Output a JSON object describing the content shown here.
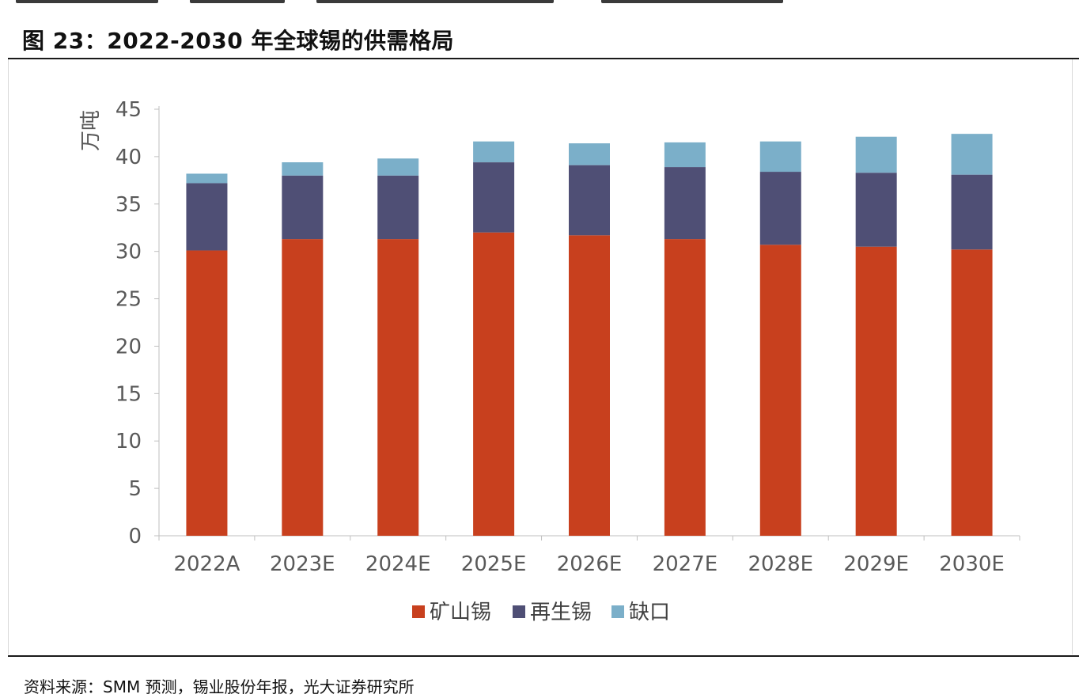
{
  "figure": {
    "title": "图 23：2022-2030 年全球锡的供需格局",
    "source": "资料来源：SMM 预测，锡业股份年报，光大证券研究所"
  },
  "chart_data": {
    "type": "bar",
    "stacked": true,
    "title": "",
    "xlabel": "",
    "ylabel": "万吨",
    "ylim": [
      0,
      45
    ],
    "yticks": [
      0,
      5,
      10,
      15,
      20,
      25,
      30,
      35,
      40,
      45
    ],
    "grid": false,
    "legend_position": "bottom",
    "categories": [
      "2022A",
      "2023E",
      "2024E",
      "2025E",
      "2026E",
      "2027E",
      "2028E",
      "2029E",
      "2030E"
    ],
    "series": [
      {
        "name": "矿山锡",
        "color": "#C8401E",
        "values": [
          30.1,
          31.3,
          31.3,
          32.0,
          31.7,
          31.3,
          30.7,
          30.5,
          30.2
        ]
      },
      {
        "name": "再生锡",
        "color": "#4F4F75",
        "values": [
          7.1,
          6.7,
          6.7,
          7.4,
          7.4,
          7.6,
          7.7,
          7.8,
          7.9
        ]
      },
      {
        "name": "缺口",
        "color": "#7BAFC9",
        "values": [
          1.0,
          1.4,
          1.8,
          2.2,
          2.3,
          2.6,
          3.2,
          3.8,
          4.3
        ]
      }
    ]
  }
}
